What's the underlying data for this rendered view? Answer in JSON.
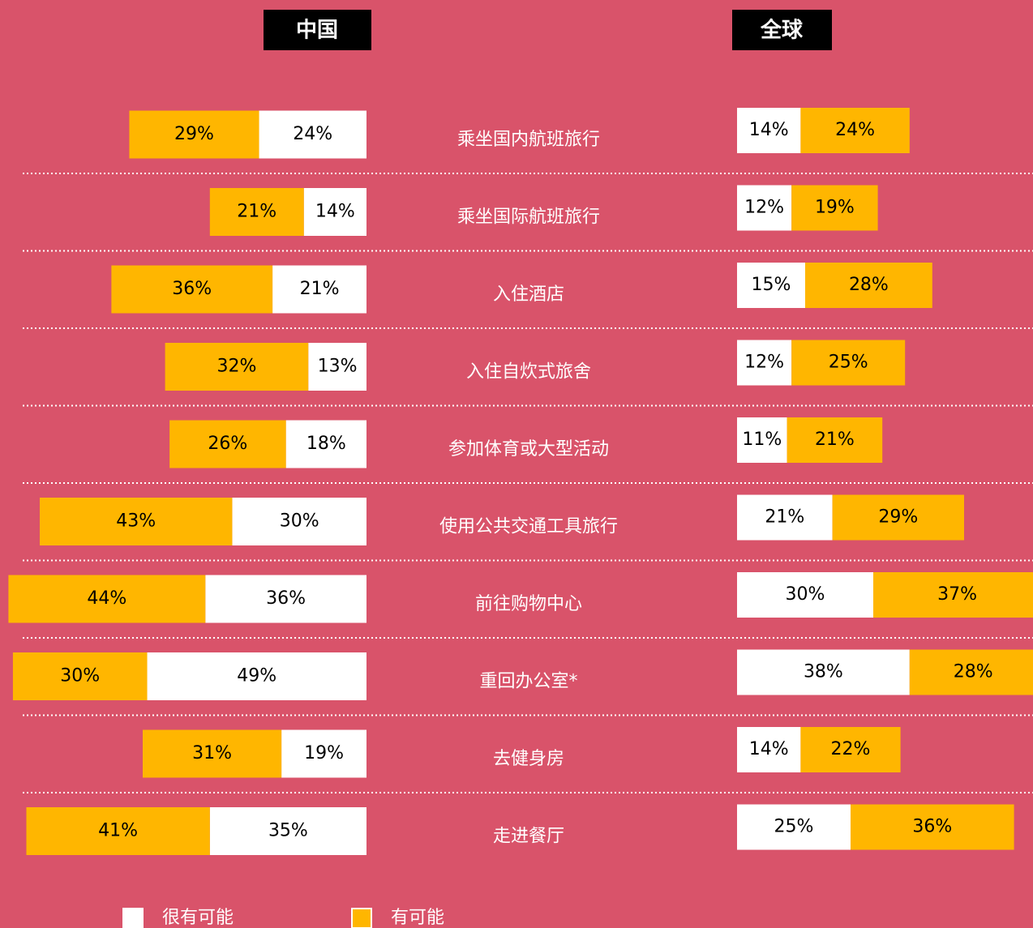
{
  "chart_data": [
    {
      "type": "bar",
      "title": "中国",
      "categories": [
        "乘坐国内航班旅行",
        "乘坐国际航班旅行",
        "入住酒店",
        "入住自炊式旅舍",
        "参加体育或大型活动",
        "使用公共交通工具旅行",
        "前往购物中心",
        "重回办公室*",
        "去健身房",
        "走进餐厅"
      ],
      "series": [
        {
          "name": "很有可能",
          "color": "#ffffff",
          "values": [
            24,
            14,
            21,
            13,
            18,
            30,
            36,
            49,
            19,
            35
          ],
          "value_labels": [
            "24%",
            "14%",
            "21%",
            "13%",
            "18%",
            "30%",
            "36%",
            "49%",
            "19%",
            "35%"
          ]
        },
        {
          "name": "有可能",
          "color": "#ffb600",
          "values": [
            29,
            21,
            36,
            32,
            26,
            43,
            44,
            30,
            31,
            41
          ],
          "value_labels": [
            "29%",
            "21%",
            "36%",
            "32%",
            "26%",
            "43%",
            "44%",
            "30%",
            "31%",
            "41%"
          ]
        }
      ]
    },
    {
      "type": "bar",
      "title": "全球",
      "series": [
        {
          "color": "#ffffff",
          "values": [
            14,
            12,
            15,
            12,
            11,
            21,
            30,
            38,
            14,
            25
          ],
          "value_labels": [
            "14%",
            "12%",
            "15%",
            "12%",
            "11%",
            "21%",
            "30%",
            "38%",
            "14%",
            "25%"
          ]
        },
        {
          "color": "#ffb600",
          "values": [
            24,
            19,
            28,
            25,
            21,
            29,
            37,
            28,
            22,
            36
          ],
          "value_labels": [
            "24%",
            "19%",
            "28%",
            "25%",
            "21%",
            "29%",
            "37%",
            "28%",
            "22%",
            "36%"
          ]
        }
      ]
    }
  ]
}
